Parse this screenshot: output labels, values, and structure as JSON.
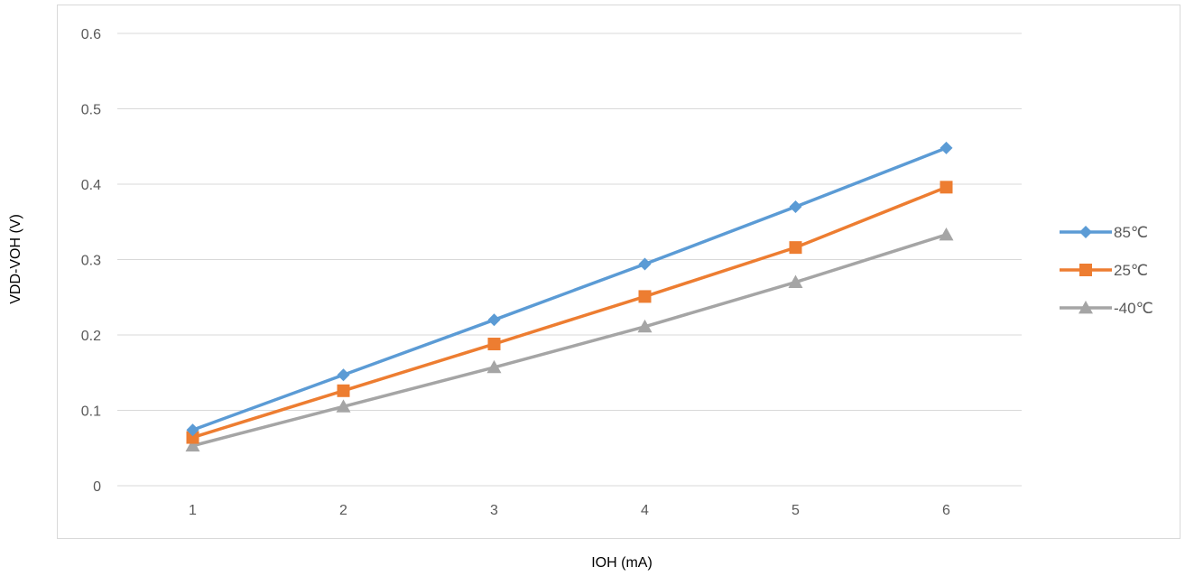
{
  "chart_data": {
    "type": "line",
    "title": "",
    "xlabel": "IOH (mA)",
    "ylabel": "VDD-VOH (V)",
    "categories": [
      "1",
      "2",
      "3",
      "4",
      "5",
      "6"
    ],
    "ylim": [
      0,
      0.6
    ],
    "yticks": [
      "0",
      "0.1",
      "0.2",
      "0.3",
      "0.4",
      "0.5",
      "0.6"
    ],
    "grid": true,
    "legend_position": "right",
    "series": [
      {
        "name": "85℃",
        "color": "#5b9bd5",
        "marker": "diamond",
        "values": [
          0.074,
          0.147,
          0.22,
          0.294,
          0.37,
          0.448
        ]
      },
      {
        "name": "25℃",
        "color": "#ed7d31",
        "marker": "square",
        "values": [
          0.064,
          0.126,
          0.188,
          0.251,
          0.316,
          0.396
        ]
      },
      {
        "name": "-40℃",
        "color": "#a5a5a5",
        "marker": "triangle",
        "values": [
          0.053,
          0.105,
          0.157,
          0.211,
          0.27,
          0.333
        ]
      }
    ]
  }
}
